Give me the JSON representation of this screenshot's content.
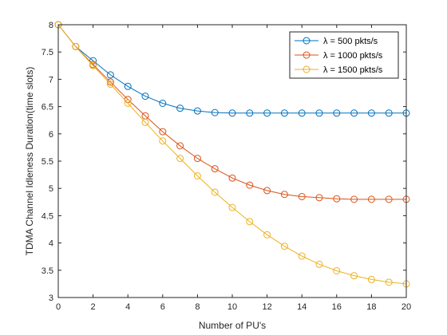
{
  "chart_data": {
    "type": "line",
    "xlabel": "Number of PU's",
    "ylabel": "TDMA Channel Idleness Duration(time slots)",
    "xlim": [
      0,
      20
    ],
    "ylim": [
      3,
      8
    ],
    "xticks": [
      0,
      2,
      4,
      6,
      8,
      10,
      12,
      14,
      16,
      18,
      20
    ],
    "yticks": [
      3,
      3.5,
      4,
      4.5,
      5,
      5.5,
      6,
      6.5,
      7,
      7.5,
      8
    ],
    "legend_position": "top-right",
    "grid": false,
    "x": [
      0,
      1,
      2,
      3,
      4,
      5,
      6,
      7,
      8,
      9,
      10,
      11,
      12,
      13,
      14,
      15,
      16,
      17,
      18,
      19,
      20
    ],
    "series": [
      {
        "name": "λ = 500 pkts/s",
        "color": "#0072bd",
        "values": [
          8.0,
          7.6,
          7.34,
          7.08,
          6.87,
          6.69,
          6.56,
          6.47,
          6.42,
          6.39,
          6.38,
          6.38,
          6.38,
          6.38,
          6.38,
          6.38,
          6.38,
          6.38,
          6.38,
          6.38,
          6.38
        ]
      },
      {
        "name": "λ = 1000 pkts/s",
        "color": "#d95319",
        "values": [
          8.0,
          7.6,
          7.27,
          6.95,
          6.63,
          6.33,
          6.04,
          5.78,
          5.55,
          5.36,
          5.19,
          5.06,
          4.96,
          4.89,
          4.85,
          4.83,
          4.81,
          4.8,
          4.8,
          4.8,
          4.8
        ]
      },
      {
        "name": "λ = 1500 pkts/s",
        "color": "#edb120",
        "values": [
          8.0,
          7.6,
          7.25,
          6.91,
          6.56,
          6.21,
          5.87,
          5.55,
          5.23,
          4.93,
          4.65,
          4.39,
          4.15,
          3.94,
          3.76,
          3.61,
          3.49,
          3.4,
          3.33,
          3.28,
          3.25
        ]
      }
    ]
  }
}
